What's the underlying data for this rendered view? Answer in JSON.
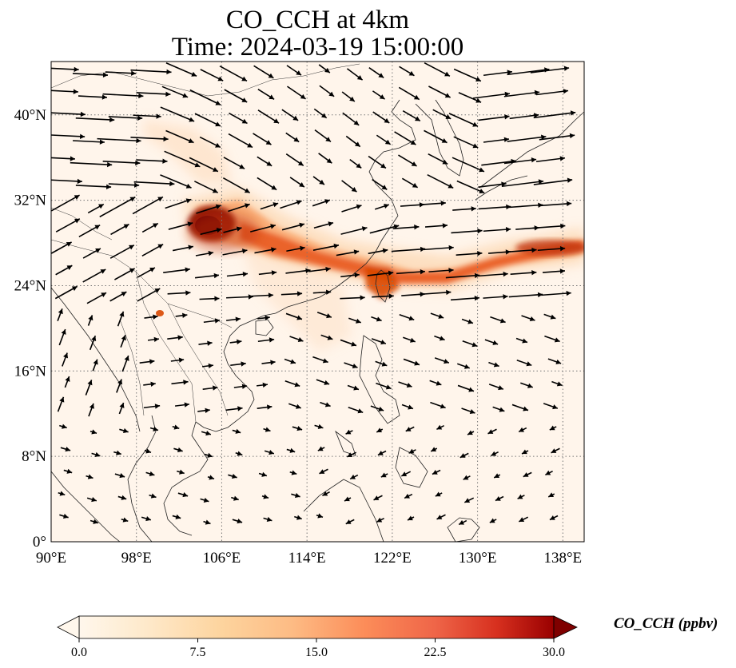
{
  "title": {
    "line1": "CO_CCH at 4km",
    "line2": "Time: 2024-03-19 15:00:00"
  },
  "map": {
    "lon_range": [
      90,
      140
    ],
    "lat_range": [
      0,
      45
    ],
    "lon_ticks": [
      {
        "value": 90,
        "label": "90°E"
      },
      {
        "value": 98,
        "label": "98°E"
      },
      {
        "value": 106,
        "label": "106°E"
      },
      {
        "value": 114,
        "label": "114°E"
      },
      {
        "value": 122,
        "label": "122°E"
      },
      {
        "value": 130,
        "label": "130°E"
      },
      {
        "value": 138,
        "label": "138°E"
      }
    ],
    "lat_ticks": [
      {
        "value": 0,
        "label": "0°"
      },
      {
        "value": 8,
        "label": "8°N"
      },
      {
        "value": 16,
        "label": "16°N"
      },
      {
        "value": 24,
        "label": "24°N"
      },
      {
        "value": 32,
        "label": "32°N"
      },
      {
        "value": 40,
        "label": "40°N"
      }
    ],
    "gridlines": "dotted",
    "background_color": "#fff5eb",
    "plume_colors": [
      "#fee6ce",
      "#fdd0a2",
      "#fdae6b",
      "#f16913",
      "#d94801",
      "#a63603",
      "#7f2704"
    ]
  },
  "colorbar": {
    "label": "CO_CCH (ppbv)",
    "min": 0.0,
    "max": 30.0,
    "extend": "both",
    "colormap": "OrRd",
    "ticks": [
      {
        "value": 0.0,
        "label": "0.0"
      },
      {
        "value": 7.5,
        "label": "7.5"
      },
      {
        "value": 15.0,
        "label": "15.0"
      },
      {
        "value": 22.5,
        "label": "22.5"
      },
      {
        "value": 30.0,
        "label": "30.0"
      }
    ]
  },
  "wind_vectors": "black quiver arrows over the domain"
}
